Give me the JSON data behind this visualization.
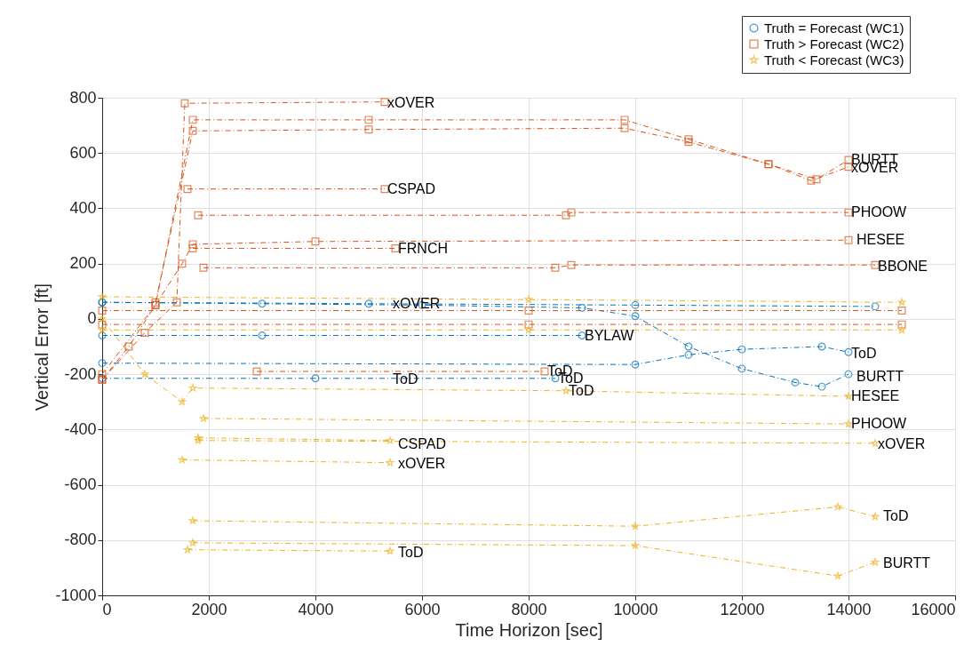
{
  "chart_data": {
    "type": "line",
    "xlabel": "Time Horizon [sec]",
    "ylabel": "Vertical Error [ft]",
    "xlim": [
      0,
      16000
    ],
    "xticks": [
      0,
      2000,
      4000,
      6000,
      8000,
      10000,
      12000,
      14000,
      16000
    ],
    "ylim": [
      -1000,
      800
    ],
    "yticks": [
      -1000,
      -800,
      -600,
      -400,
      -200,
      0,
      200,
      400,
      600,
      800
    ],
    "grid": true,
    "legend": "top right",
    "line_style": "dashed",
    "series": [
      {
        "name": "Truth = Forecast (WC1)",
        "color": "#0072bd",
        "marker": "circle",
        "x": [
          0,
          3000,
          6000,
          9000,
          10000,
          11000,
          12000,
          13000,
          13500,
          14000,
          null,
          0,
          10000,
          11000,
          12000,
          13500,
          14000,
          null,
          0,
          4000,
          8500,
          null,
          0,
          5000,
          10000,
          14500,
          null,
          0,
          3000,
          9000
        ],
        "values": [
          60,
          55,
          50,
          40,
          10,
          -100,
          -180,
          -230,
          -245,
          -200,
          null,
          -160,
          -165,
          -130,
          -110,
          -100,
          -120,
          null,
          -215,
          -215,
          -215,
          null,
          60,
          55,
          50,
          45,
          null,
          -60,
          -60,
          -60
        ]
      },
      {
        "name": "Truth > Forecast (WC2)",
        "color": "#d95319",
        "marker": "square",
        "x": [
          0,
          800,
          1400,
          1550,
          5300,
          null,
          0,
          1000,
          1700,
          5000,
          9800,
          11000,
          12500,
          13400,
          14000,
          null,
          1000,
          1700,
          5000,
          9800,
          11000,
          12500,
          13300,
          14000,
          null,
          1600,
          5300,
          null,
          1800,
          8700,
          8800,
          14000,
          null,
          0,
          500,
          1000,
          1500,
          1700,
          4000,
          14000,
          null,
          1700,
          5500,
          null,
          1900,
          8500,
          8800,
          14500,
          null,
          2900,
          8300,
          null,
          0,
          8000,
          15000,
          null,
          0,
          8000,
          15000
        ],
        "values": [
          -220,
          -50,
          60,
          780,
          785,
          null,
          -200,
          50,
          720,
          720,
          720,
          650,
          560,
          505,
          575,
          null,
          60,
          680,
          685,
          690,
          640,
          560,
          500,
          550,
          null,
          470,
          470,
          null,
          375,
          375,
          385,
          385,
          null,
          -220,
          -100,
          50,
          200,
          270,
          280,
          285,
          null,
          255,
          255,
          null,
          185,
          185,
          195,
          195,
          null,
          -190,
          -190,
          null,
          30,
          30,
          30,
          null,
          -20,
          -20,
          -20
        ]
      },
      {
        "name": "Truth < Forecast (WC3)",
        "color": "#edb120",
        "marker": "star",
        "x": [
          0,
          800,
          1500,
          1700,
          8700,
          14000,
          null,
          1900,
          14000,
          null,
          1800,
          5400,
          null,
          1800,
          14500,
          null,
          1500,
          5400,
          null,
          1700,
          10000,
          13800,
          14500,
          null,
          1700,
          10000,
          13800,
          14500,
          null,
          1600,
          5400,
          null,
          0,
          8000,
          15000,
          null,
          0,
          8000,
          15000
        ],
        "values": [
          0,
          -200,
          -300,
          -250,
          -260,
          -280,
          null,
          -360,
          -380,
          null,
          -430,
          -440,
          null,
          -440,
          -450,
          null,
          -510,
          -520,
          null,
          -730,
          -750,
          -680,
          -715,
          null,
          -810,
          -820,
          -930,
          -880,
          null,
          -835,
          -840,
          null,
          80,
          70,
          60,
          null,
          -40,
          -40,
          -40
        ]
      }
    ],
    "annotations": [
      {
        "text": "xOVER",
        "x": 5300,
        "y": 780
      },
      {
        "text": "BURTT",
        "x": 14000,
        "y": 575
      },
      {
        "text": "xOVER",
        "x": 14000,
        "y": 545
      },
      {
        "text": "CSPAD",
        "x": 5300,
        "y": 470
      },
      {
        "text": "PHOOW",
        "x": 14000,
        "y": 385
      },
      {
        "text": "HESEE",
        "x": 14100,
        "y": 285
      },
      {
        "text": "FRNCH",
        "x": 5500,
        "y": 255
      },
      {
        "text": "BBONE",
        "x": 14500,
        "y": 190
      },
      {
        "text": "xOVER",
        "x": 5400,
        "y": 55
      },
      {
        "text": "BYLAW",
        "x": 9000,
        "y": -60
      },
      {
        "text": "ToD",
        "x": 14000,
        "y": -125
      },
      {
        "text": "BURTT",
        "x": 14100,
        "y": -210
      },
      {
        "text": "ToD",
        "x": 5400,
        "y": -220
      },
      {
        "text": "ToD",
        "x": 8300,
        "y": -190
      },
      {
        "text": "ToD",
        "x": 8500,
        "y": -215
      },
      {
        "text": "ToD",
        "x": 8700,
        "y": -260
      },
      {
        "text": "HESEE",
        "x": 14000,
        "y": -280
      },
      {
        "text": "PHOOW",
        "x": 14000,
        "y": -380
      },
      {
        "text": "CSPAD",
        "x": 5500,
        "y": -455
      },
      {
        "text": "xOVER",
        "x": 14500,
        "y": -455
      },
      {
        "text": "xOVER",
        "x": 5500,
        "y": -525
      },
      {
        "text": "ToD",
        "x": 14600,
        "y": -715
      },
      {
        "text": "BURTT",
        "x": 14600,
        "y": -885
      },
      {
        "text": "ToD",
        "x": 5500,
        "y": -845
      }
    ]
  }
}
